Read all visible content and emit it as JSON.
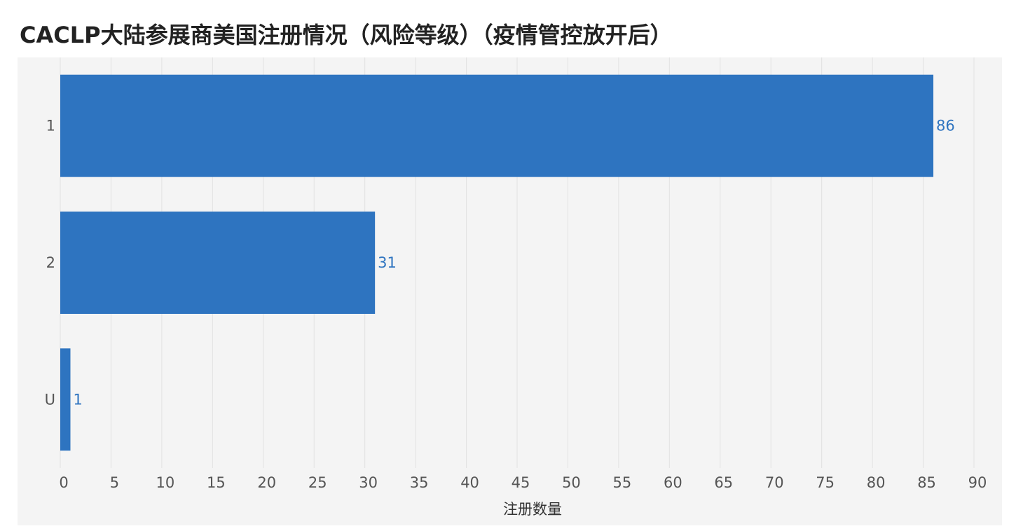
{
  "chart_data": {
    "type": "hbar",
    "title": "CACLP大陆参展商美国注册情况（风险等级）（疫情管控放开后）",
    "categories": [
      "1",
      "2",
      "U"
    ],
    "values": [
      86,
      31,
      1
    ],
    "color": "#2e74c0",
    "xlabel": "注册数量",
    "xlim": [
      0,
      90
    ],
    "xticks": [
      0,
      5,
      10,
      15,
      20,
      25,
      30,
      35,
      40,
      45,
      50,
      55,
      60,
      65,
      70,
      75,
      80,
      85,
      90
    ],
    "grid": true
  }
}
